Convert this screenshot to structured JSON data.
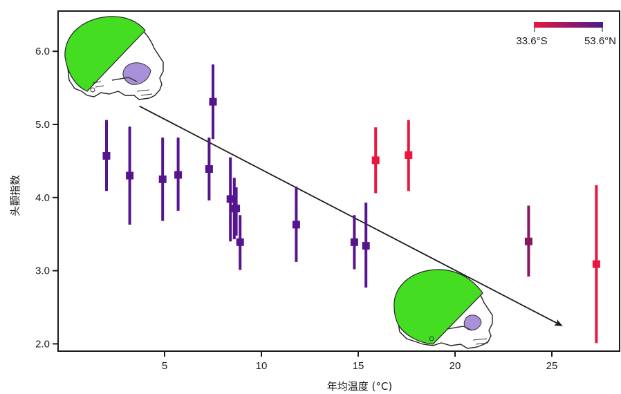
{
  "chart_data": {
    "type": "scatter",
    "title": "",
    "xlabel": "年均温度 (°C)",
    "ylabel": "头颧指数",
    "xlim": [
      -0.5,
      28.5
    ],
    "ylim": [
      1.9,
      6.55
    ],
    "x_ticks": [
      5,
      10,
      15,
      20,
      25
    ],
    "x_tick_labels": [
      "5",
      "10",
      "15",
      "20",
      "25"
    ],
    "y_ticks": [
      2.0,
      3.0,
      4.0,
      5.0,
      6.0
    ],
    "y_tick_labels": [
      "2.0",
      "3.0",
      "4.0",
      "5.0",
      "6.0"
    ],
    "grid": false,
    "legend": {
      "placement": "top-right",
      "type": "colorbar",
      "min_label": "33.6°S",
      "max_label": "53.6°N",
      "color_min": "#e8173f",
      "color_max": "#4a1a8c"
    },
    "points": [
      {
        "x": 2.0,
        "y": 4.57,
        "err_low": 4.09,
        "err_high": 5.06,
        "color": "#56148f"
      },
      {
        "x": 3.2,
        "y": 4.3,
        "err_low": 3.63,
        "err_high": 4.97,
        "color": "#56148f"
      },
      {
        "x": 4.9,
        "y": 4.25,
        "err_low": 3.68,
        "err_high": 4.82,
        "color": "#56148f"
      },
      {
        "x": 5.7,
        "y": 4.31,
        "err_low": 3.82,
        "err_high": 4.82,
        "color": "#56148f"
      },
      {
        "x": 7.3,
        "y": 4.39,
        "err_low": 3.96,
        "err_high": 4.82,
        "color": "#56148f"
      },
      {
        "x": 7.5,
        "y": 5.31,
        "err_low": 4.8,
        "err_high": 5.82,
        "color": "#56148f"
      },
      {
        "x": 8.4,
        "y": 3.98,
        "err_low": 3.4,
        "err_high": 4.55,
        "color": "#56148f"
      },
      {
        "x": 8.6,
        "y": 3.85,
        "err_low": 3.43,
        "err_high": 4.27,
        "color": "#56148f"
      },
      {
        "x": 8.7,
        "y": 3.85,
        "err_low": 3.48,
        "err_high": 4.14,
        "color": "#56148f"
      },
      {
        "x": 8.9,
        "y": 3.39,
        "err_low": 3.01,
        "err_high": 3.76,
        "color": "#56148f"
      },
      {
        "x": 11.8,
        "y": 3.63,
        "err_low": 3.12,
        "err_high": 4.15,
        "color": "#56148f"
      },
      {
        "x": 14.8,
        "y": 3.39,
        "err_low": 3.02,
        "err_high": 3.76,
        "color": "#56148f"
      },
      {
        "x": 15.4,
        "y": 3.34,
        "err_low": 2.77,
        "err_high": 3.93,
        "color": "#56148f"
      },
      {
        "x": 15.9,
        "y": 4.51,
        "err_low": 4.06,
        "err_high": 4.96,
        "color": "#e8173f"
      },
      {
        "x": 17.6,
        "y": 4.58,
        "err_low": 4.09,
        "err_high": 5.06,
        "color": "#e8173f"
      },
      {
        "x": 23.8,
        "y": 3.4,
        "err_low": 2.92,
        "err_high": 3.89,
        "color": "#8a1660"
      },
      {
        "x": 27.3,
        "y": 3.09,
        "err_low": 2.01,
        "err_high": 4.17,
        "color": "#e8173f"
      }
    ],
    "trend_arrow": {
      "x_start": 3.7,
      "y_start": 5.25,
      "x_end": 25.5,
      "y_end": 2.25
    },
    "illustrations": [
      "skull-icon",
      "skull-icon"
    ]
  }
}
